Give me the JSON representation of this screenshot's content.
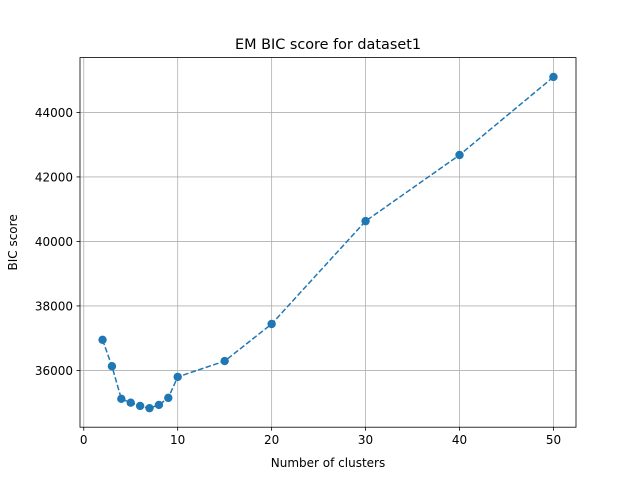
{
  "chart_data": {
    "type": "line",
    "title": "EM BIC score for dataset1",
    "xlabel": "Number of clusters",
    "ylabel": "BIC score",
    "xlim": [
      -0.4,
      52.4
    ],
    "ylim": [
      34240,
      45700
    ],
    "xticks": [
      0,
      10,
      20,
      30,
      40,
      50
    ],
    "yticks": [
      36000,
      38000,
      40000,
      42000,
      44000
    ],
    "grid": true,
    "line_style": "dashed",
    "marker": "circle",
    "color": "#1f77b4",
    "series": [
      {
        "x": [
          2,
          3,
          4,
          5,
          6,
          7,
          8,
          9,
          10,
          15,
          20,
          30,
          40,
          50
        ],
        "y": [
          36950,
          36130,
          35120,
          35000,
          34900,
          34830,
          34930,
          35150,
          35800,
          36290,
          37440,
          40630,
          42680,
          45100
        ]
      }
    ]
  }
}
